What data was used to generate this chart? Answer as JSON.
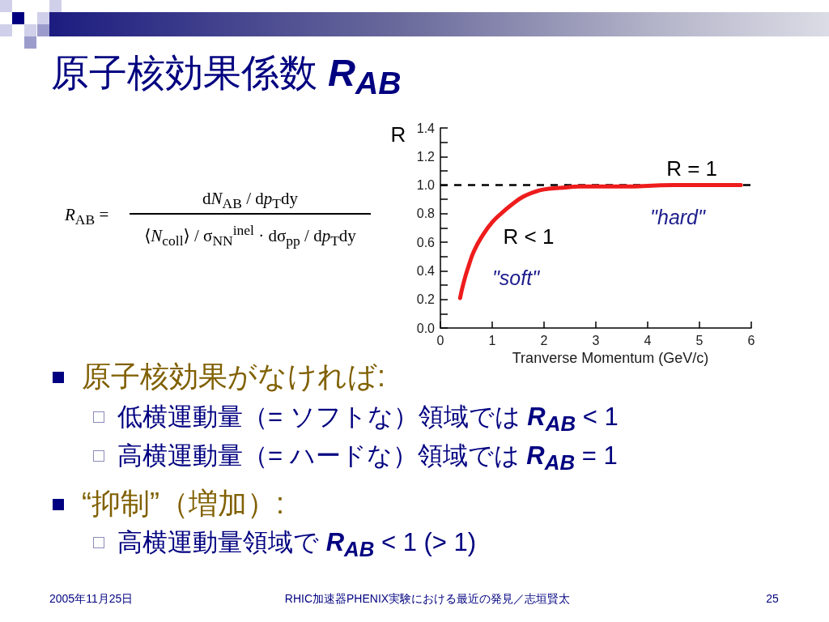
{
  "chart_data": {
    "type": "line",
    "title": "原子核効果係数 R$_{AB}$",
    "xlabel": "Tranverse Momentum (GeV/c)",
    "ylabel": "R",
    "x": [
      0.38,
      0.45,
      0.55,
      0.65,
      0.8,
      1.0,
      1.2,
      1.4,
      1.6,
      1.8,
      2.0,
      2.3,
      2.7,
      3.5,
      4.5,
      5.8
    ],
    "series": [
      {
        "color": "#ee1c1c",
        "values": [
          0.21,
          0.32,
          0.44,
          0.54,
          0.64,
          0.74,
          0.81,
          0.87,
          0.92,
          0.95,
          0.97,
          0.98,
          0.99,
          0.99,
          1.0,
          1.0
        ]
      }
    ],
    "xlim": [
      0,
      6
    ],
    "xticks": [
      0,
      1,
      2,
      3,
      4,
      5,
      6
    ],
    "ylim": [
      0,
      1.4
    ],
    "yticks": [
      {
        "value": 0,
        "label": "0.0"
      },
      {
        "value": 0.1,
        "label": null
      },
      0.2,
      {
        "value": 0.3,
        "label": null
      },
      0.4,
      {
        "value": 0.5,
        "label": null
      },
      0.6,
      {
        "value": 0.7,
        "label": null
      },
      0.8,
      {
        "value": 0.9,
        "label": null
      },
      {
        "value": 1,
        "label": "1.0"
      },
      {
        "value": 1.1,
        "label": null
      },
      1.2,
      {
        "value": 1.3,
        "label": null
      },
      1.4
    ],
    "ref_lines": [
      {
        "axis": "y",
        "value": 1,
        "label": "R = 1",
        "color": "#000000",
        "line_style": "dashed"
      }
    ],
    "marker": "none",
    "line_style": "solid",
    "annotations": [
      "R < 1",
      "\"soft\"",
      "\"hard\"",
      "R$_{AB}$ =",
      "dN$_{AB}$ / dp$_{T}$dy",
      "⟨N$_{coll}$⟩ / σ$_{NN}$$^{inel}$ · dσ$_{pp}$ / dp$_{T}$dy",
      "原子核効果がなければ:",
      "低横運動量（= ソフトな）領域では R$_{AB}$ < 1",
      "高横運動量（= ハードな）領域では R$_{AB}$ = 1",
      "“抑制”（増加）:",
      "高横運動量領域で R$_{AB}$ < 1 (> 1)",
      "2005年11月25日",
      "RHIC加速器PHENIX実験における最近の発見／志垣賢太",
      "25"
    ]
  }
}
